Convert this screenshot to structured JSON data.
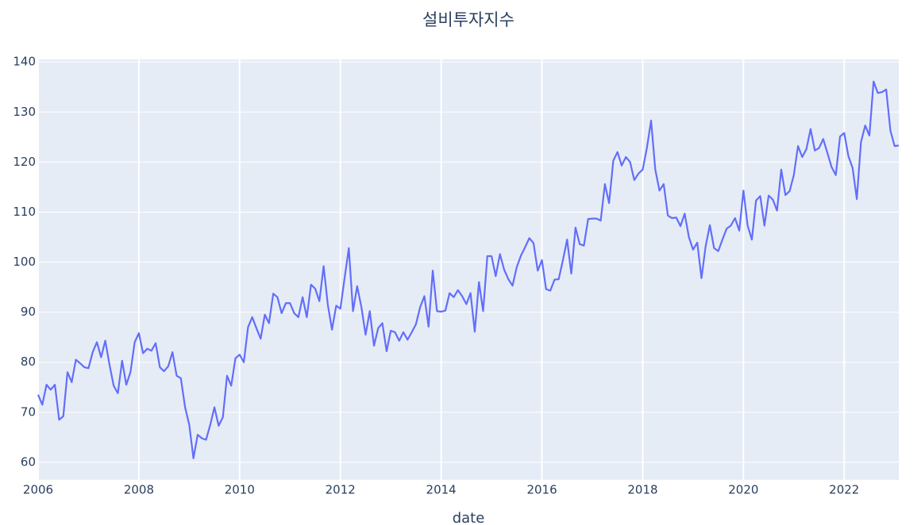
{
  "chart_data": {
    "type": "line",
    "title": "설비투자지수",
    "x_label": "date",
    "color": "#636efa",
    "grid": true,
    "xlim": [
      2006,
      2023.083
    ],
    "xticks": [
      2006,
      2008,
      2010,
      2012,
      2014,
      2016,
      2018,
      2020,
      2022
    ],
    "ylim": [
      56.5,
      140.5
    ],
    "yticks": [
      60,
      70,
      80,
      90,
      100,
      110,
      120,
      130,
      140
    ],
    "x": [
      2006,
      2006.083,
      2006.167,
      2006.25,
      2006.333,
      2006.417,
      2006.5,
      2006.583,
      2006.667,
      2006.75,
      2006.833,
      2006.917,
      2007,
      2007.083,
      2007.167,
      2007.25,
      2007.333,
      2007.417,
      2007.5,
      2007.583,
      2007.667,
      2007.75,
      2007.833,
      2007.917,
      2008,
      2008.083,
      2008.167,
      2008.25,
      2008.333,
      2008.417,
      2008.5,
      2008.583,
      2008.667,
      2008.75,
      2008.833,
      2008.917,
      2009,
      2009.083,
      2009.167,
      2009.25,
      2009.333,
      2009.417,
      2009.5,
      2009.583,
      2009.667,
      2009.75,
      2009.833,
      2009.917,
      2010,
      2010.083,
      2010.167,
      2010.25,
      2010.333,
      2010.417,
      2010.5,
      2010.583,
      2010.667,
      2010.75,
      2010.833,
      2010.917,
      2011,
      2011.083,
      2011.167,
      2011.25,
      2011.333,
      2011.417,
      2011.5,
      2011.583,
      2011.667,
      2011.75,
      2011.833,
      2011.917,
      2012,
      2012.083,
      2012.167,
      2012.25,
      2012.333,
      2012.417,
      2012.5,
      2012.583,
      2012.667,
      2012.75,
      2012.833,
      2012.917,
      2013,
      2013.083,
      2013.167,
      2013.25,
      2013.333,
      2013.417,
      2013.5,
      2013.583,
      2013.667,
      2013.75,
      2013.833,
      2013.917,
      2014,
      2014.083,
      2014.167,
      2014.25,
      2014.333,
      2014.417,
      2014.5,
      2014.583,
      2014.667,
      2014.75,
      2014.833,
      2014.917,
      2015,
      2015.083,
      2015.167,
      2015.25,
      2015.333,
      2015.417,
      2015.5,
      2015.583,
      2015.667,
      2015.75,
      2015.833,
      2015.917,
      2016,
      2016.083,
      2016.167,
      2016.25,
      2016.333,
      2016.417,
      2016.5,
      2016.583,
      2016.667,
      2016.75,
      2016.833,
      2016.917,
      2017,
      2017.083,
      2017.167,
      2017.25,
      2017.333,
      2017.417,
      2017.5,
      2017.583,
      2017.667,
      2017.75,
      2017.833,
      2017.917,
      2018,
      2018.083,
      2018.167,
      2018.25,
      2018.333,
      2018.417,
      2018.5,
      2018.583,
      2018.667,
      2018.75,
      2018.833,
      2018.917,
      2019,
      2019.083,
      2019.167,
      2019.25,
      2019.333,
      2019.417,
      2019.5,
      2019.583,
      2019.667,
      2019.75,
      2019.833,
      2019.917,
      2020,
      2020.083,
      2020.167,
      2020.25,
      2020.333,
      2020.417,
      2020.5,
      2020.583,
      2020.667,
      2020.75,
      2020.833,
      2020.917,
      2021,
      2021.083,
      2021.167,
      2021.25,
      2021.333,
      2021.417,
      2021.5,
      2021.583,
      2021.667,
      2021.75,
      2021.833,
      2021.917,
      2022,
      2022.083,
      2022.167,
      2022.25,
      2022.333,
      2022.417,
      2022.5,
      2022.583,
      2022.667,
      2022.75,
      2022.833,
      2022.917,
      2023,
      2023.083
    ],
    "values": [
      73.5,
      71.5,
      75.5,
      74.5,
      75.5,
      68.5,
      69.2,
      78,
      76,
      80.5,
      79.8,
      79,
      78.8,
      82,
      84,
      81,
      84.3,
      79.5,
      75.3,
      73.8,
      80.3,
      75.5,
      78,
      84,
      85.8,
      81.8,
      82.7,
      82.3,
      83.8,
      79,
      78.2,
      79.2,
      82,
      77.3,
      76.8,
      71,
      67.5,
      60.8,
      65.5,
      64.8,
      64.5,
      67.5,
      71,
      67.3,
      69,
      77.3,
      75.3,
      80.8,
      81.5,
      80,
      87,
      89,
      86.8,
      84.7,
      89.5,
      87.8,
      93.7,
      93,
      89.8,
      91.8,
      91.8,
      89.8,
      89,
      93,
      89,
      95.5,
      94.7,
      92.2,
      99.2,
      91.5,
      86.5,
      91.3,
      90.7,
      96.8,
      102.8,
      90.2,
      95.2,
      91,
      85.5,
      90.2,
      83.3,
      86.8,
      87.8,
      82.2,
      86.3,
      86,
      84.3,
      86,
      84.5,
      86,
      87.6,
      91,
      93.2,
      87.1,
      98.3,
      90.2,
      90.1,
      90.3,
      93.8,
      93,
      94.4,
      93.2,
      91.6,
      93.8,
      86.1,
      96,
      90.2,
      101.2,
      101.2,
      97.2,
      101.6,
      98.5,
      96.6,
      95.3,
      99,
      101.3,
      103,
      104.8,
      103.8,
      98.3,
      100.4,
      94.6,
      94.3,
      96.5,
      96.6,
      100.4,
      104.5,
      97.7,
      106.9,
      103.6,
      103.3,
      108.6,
      108.7,
      108.7,
      108.3,
      115.6,
      111.8,
      120.3,
      122,
      119.3,
      121,
      120,
      116.4,
      117.7,
      118.5,
      122.8,
      128.3,
      118.5,
      114.3,
      115.6,
      109.3,
      108.8,
      108.9,
      107.2,
      109.7,
      105,
      102.5,
      103.9,
      96.8,
      103.2,
      107.4,
      102.8,
      102.2,
      104.5,
      106.7,
      107.3,
      108.8,
      106.3,
      114.3,
      107.3,
      104.5,
      112.3,
      113.2,
      107.3,
      113.3,
      112.5,
      110.3,
      118.5,
      113.4,
      114.2,
      117.4,
      123.2,
      121,
      122.6,
      126.6,
      122.3,
      122.8,
      124.6,
      121.8,
      119,
      117.4,
      125.1,
      125.8,
      121.2,
      118.8,
      112.6,
      124,
      127.3,
      125.3,
      136.1,
      133.8,
      134,
      134.5,
      126.3,
      123.2,
      123.3
    ]
  }
}
